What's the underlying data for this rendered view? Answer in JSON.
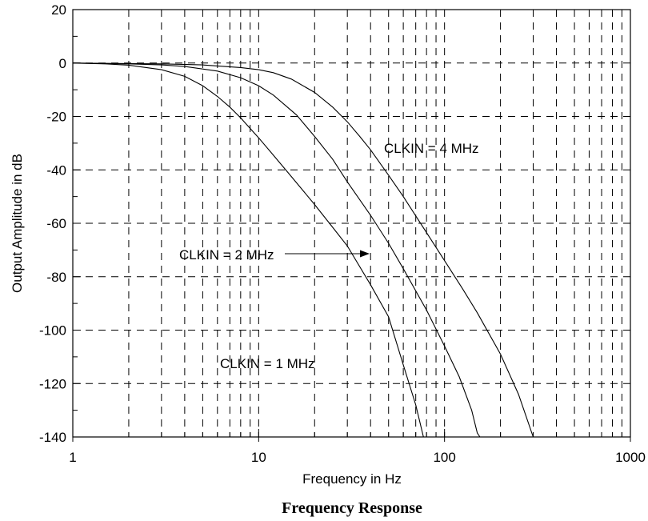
{
  "chart_data": {
    "type": "line",
    "title": "Frequency Response",
    "xlabel": "Frequency in Hz",
    "ylabel": "Output Amplitude in dB",
    "x_scale": "log",
    "xlim": [
      1,
      1000
    ],
    "ylim": [
      -140,
      20
    ],
    "x_ticks": [
      1,
      10,
      100,
      1000
    ],
    "x_tick_labels": [
      "1",
      "10",
      "100",
      "1000"
    ],
    "y_ticks": [
      20,
      0,
      -20,
      -40,
      -60,
      -80,
      -100,
      -120,
      -140
    ],
    "y_tick_labels": [
      "20",
      "0",
      "-20",
      "-40",
      "-60",
      "-80",
      "-100",
      "-120",
      "-140"
    ],
    "grid": true,
    "series": [
      {
        "name": "CLKIN = 1 MHz",
        "x": [
          1,
          1.5,
          2,
          3,
          4,
          5,
          6,
          7,
          8,
          9,
          10,
          12,
          15,
          20,
          25,
          30,
          40,
          50,
          60,
          70,
          77
        ],
        "y": [
          0,
          -0.3,
          -0.8,
          -2.5,
          -5,
          -8.5,
          -12.5,
          -16.5,
          -20.5,
          -24.5,
          -28,
          -34.5,
          -42.5,
          -53,
          -61.5,
          -68.5,
          -83,
          -95,
          -113,
          -128,
          -140
        ]
      },
      {
        "name": "CLKIN = 2 MHz",
        "x": [
          1,
          2,
          3,
          4,
          6,
          8,
          10,
          12,
          14,
          16,
          20,
          25,
          30,
          40,
          50,
          60,
          80,
          100,
          120,
          140,
          150,
          155
        ],
        "y": [
          0,
          -0.3,
          -0.7,
          -1.3,
          -3,
          -5.5,
          -8.5,
          -12,
          -16,
          -19.5,
          -27.5,
          -36,
          -44.5,
          -57,
          -67.5,
          -77,
          -92.5,
          -106,
          -117.5,
          -130,
          -138.5,
          -140
        ]
      },
      {
        "name": "CLKIN = 4 MHz",
        "x": [
          1,
          3,
          5,
          8,
          10,
          12,
          15,
          20,
          25,
          30,
          35,
          40,
          50,
          60,
          80,
          100,
          125,
          150,
          200,
          250,
          300
        ],
        "y": [
          0,
          -0.3,
          -0.7,
          -1.7,
          -2.5,
          -3.6,
          -6,
          -11,
          -16.5,
          -22,
          -27.5,
          -32.5,
          -42,
          -50,
          -63.5,
          -74,
          -84.5,
          -93.5,
          -109,
          -124,
          -140
        ]
      }
    ],
    "annotations": [
      {
        "text": "CLKIN = 4 MHz"
      },
      {
        "text": "CLKIN = 2 MHz"
      },
      {
        "text": "CLKIN = 1 MHz"
      }
    ]
  }
}
